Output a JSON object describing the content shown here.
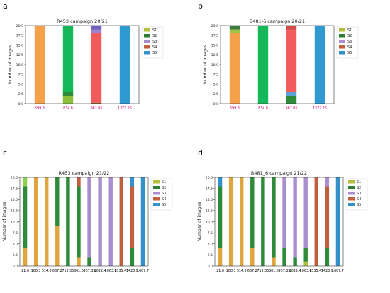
{
  "colors": {
    "S1": "#b5bd3c",
    "S2": "#2e7d32",
    "S3": "#a98fd0",
    "S4": "#c1603f",
    "S5": "#3390c9",
    "a_S1": "#c6bd3e",
    "a_S2": "#3f7d2a",
    "a_S3": "#5aa2d6",
    "a_S4": "#5f7d3a",
    "a_S5": "#7a62c0"
  },
  "panels": [
    {
      "letter": "a"
    },
    {
      "letter": "b"
    },
    {
      "letter": "c"
    },
    {
      "letter": "d"
    }
  ],
  "chart_data": [
    {
      "type": "bar",
      "stacked": true,
      "title": "R453 campaign 20/21",
      "xlabel": "",
      "ylabel": "Number of images",
      "ylim": [
        0,
        20
      ],
      "yticks": [
        "0.0",
        "2.5",
        "5.0",
        "7.5",
        "10.0",
        "12.5",
        "15.0",
        "17.5",
        "20.0"
      ],
      "categories": [
        "599.8",
        "834.8",
        "962.05",
        "1377.25"
      ],
      "legend": [
        "S1",
        "S2",
        "S3",
        "S4",
        "S5"
      ],
      "legend_placement": "top-right",
      "segments": [
        [
          {
            "color": "#f5a04a",
            "value": 20
          }
        ],
        [
          {
            "color": "#8bbf3a",
            "value": 2
          },
          {
            "color": "#2e8b3a",
            "value": 1
          },
          {
            "color": "#17b85a",
            "value": 17
          }
        ],
        [
          {
            "color": "#7f5a2a",
            "value": 0.2
          },
          {
            "color": "#f25b5b",
            "value": 17.8
          },
          {
            "color": "#9a82d0",
            "value": 1
          },
          {
            "color": "#7060c0",
            "value": 1
          }
        ],
        [
          {
            "color": "#2f9ad0",
            "value": 20
          }
        ]
      ]
    },
    {
      "type": "bar",
      "stacked": true,
      "title": "B481-6 campaign 20/21",
      "xlabel": "",
      "ylabel": "Number of images",
      "ylim": [
        0,
        20
      ],
      "yticks": [
        "0.0",
        "2.5",
        "5.0",
        "7.5",
        "10.0",
        "12.5",
        "15.0",
        "17.5",
        "20.0"
      ],
      "categories": [
        "599.8",
        "834.8",
        "962.05",
        "1377.25"
      ],
      "legend": [
        "S1",
        "S2",
        "S3",
        "S4",
        "S5"
      ],
      "legend_placement": "top-right",
      "segments": [
        [
          {
            "color": "#f5a04a",
            "value": 18
          },
          {
            "color": "#a0c24a",
            "value": 1
          },
          {
            "color": "#3a7d3a",
            "value": 1
          }
        ],
        [
          {
            "color": "#17b85a",
            "value": 20
          }
        ],
        [
          {
            "color": "#2e8b3a",
            "value": 2
          },
          {
            "color": "#5aa2d6",
            "value": 1
          },
          {
            "color": "#f25b5b",
            "value": 16
          },
          {
            "color": "#d04a4a",
            "value": 1
          }
        ],
        [
          {
            "color": "#2f9ad0",
            "value": 20
          }
        ]
      ]
    },
    {
      "type": "bar",
      "stacked": true,
      "title": "R453 campaign 21/22",
      "xlabel": "",
      "ylabel": "Number of images",
      "ylim": [
        0,
        20
      ],
      "yticks": [
        "0.0",
        "2.5",
        "5.0",
        "7.5",
        "10.0",
        "12.5",
        "15.0",
        "17.5",
        "20.0"
      ],
      "categories": [
        "21.6",
        "168.3",
        "514.8",
        "667.2",
        "712.35",
        "861.6",
        "957.35",
        "1022.4",
        "1063.6",
        "1335.45",
        "1428.9",
        "1607.7"
      ],
      "legend": [
        "S1",
        "S2",
        "S3",
        "S4",
        "S5"
      ],
      "legend_placement": "top-right",
      "segments": [
        [
          {
            "color": "#e0a53c",
            "value": 4
          },
          {
            "color": "#2e8b3a",
            "value": 14
          },
          {
            "color": "#8fd14f",
            "value": 2
          }
        ],
        [
          {
            "color": "#e0a53c",
            "value": 20
          }
        ],
        [
          {
            "color": "#e0a53c",
            "value": 20
          }
        ],
        [
          {
            "color": "#e0a53c",
            "value": 9
          },
          {
            "color": "#2e8b3a",
            "value": 11
          }
        ],
        [
          {
            "color": "#2e8b3a",
            "value": 20
          }
        ],
        [
          {
            "color": "#e0a53c",
            "value": 2
          },
          {
            "color": "#2e8b3a",
            "value": 16
          },
          {
            "color": "#c1603f",
            "value": 2
          }
        ],
        [
          {
            "color": "#2e8b3a",
            "value": 2
          },
          {
            "color": "#a98fd0",
            "value": 18
          }
        ],
        [
          {
            "color": "#a98fd0",
            "value": 20
          }
        ],
        [
          {
            "color": "#a98fd0",
            "value": 20
          }
        ],
        [
          {
            "color": "#c1603f",
            "value": 20
          }
        ],
        [
          {
            "color": "#2e8b3a",
            "value": 4
          },
          {
            "color": "#c1603f",
            "value": 14
          },
          {
            "color": "#3390c9",
            "value": 2
          }
        ],
        [
          {
            "color": "#3390c9",
            "value": 20
          }
        ]
      ]
    },
    {
      "type": "bar",
      "stacked": true,
      "title": "B481_6 campaign 21/22",
      "xlabel": "",
      "ylabel": "Number of images",
      "ylim": [
        0,
        20
      ],
      "yticks": [
        "0.0",
        "2.5",
        "5.0",
        "7.5",
        "10.0",
        "12.5",
        "15.0",
        "17.5",
        "20.0"
      ],
      "categories": [
        "21.6",
        "168.3",
        "514.8",
        "667.2",
        "712.35",
        "861.6",
        "957.35",
        "1022.4",
        "1063.6",
        "1335.45",
        "1428.9",
        "1607.7"
      ],
      "legend": [
        "S1",
        "S2",
        "S3",
        "S4",
        "S5"
      ],
      "legend_placement": "top-right",
      "segments": [
        [
          {
            "color": "#e0a53c",
            "value": 4
          },
          {
            "color": "#2e8b3a",
            "value": 14
          },
          {
            "color": "#3390c9",
            "value": 2
          }
        ],
        [
          {
            "color": "#e0a53c",
            "value": 20
          }
        ],
        [
          {
            "color": "#e0a53c",
            "value": 20
          }
        ],
        [
          {
            "color": "#e0a53c",
            "value": 4
          },
          {
            "color": "#2e8b3a",
            "value": 16
          }
        ],
        [
          {
            "color": "#2e8b3a",
            "value": 20
          }
        ],
        [
          {
            "color": "#e0a53c",
            "value": 2
          },
          {
            "color": "#2e8b3a",
            "value": 18
          }
        ],
        [
          {
            "color": "#2e8b3a",
            "value": 4
          },
          {
            "color": "#a98fd0",
            "value": 16
          }
        ],
        [
          {
            "color": "#2e8b3a",
            "value": 2
          },
          {
            "color": "#a98fd0",
            "value": 18
          }
        ],
        [
          {
            "color": "#b5bd3c",
            "value": 1
          },
          {
            "color": "#2e8b3a",
            "value": 3
          },
          {
            "color": "#a98fd0",
            "value": 16
          }
        ],
        [
          {
            "color": "#c1603f",
            "value": 20
          }
        ],
        [
          {
            "color": "#2e8b3a",
            "value": 4
          },
          {
            "color": "#c1603f",
            "value": 14
          },
          {
            "color": "#a98fd0",
            "value": 2
          }
        ],
        [
          {
            "color": "#3390c9",
            "value": 20
          }
        ]
      ]
    }
  ]
}
